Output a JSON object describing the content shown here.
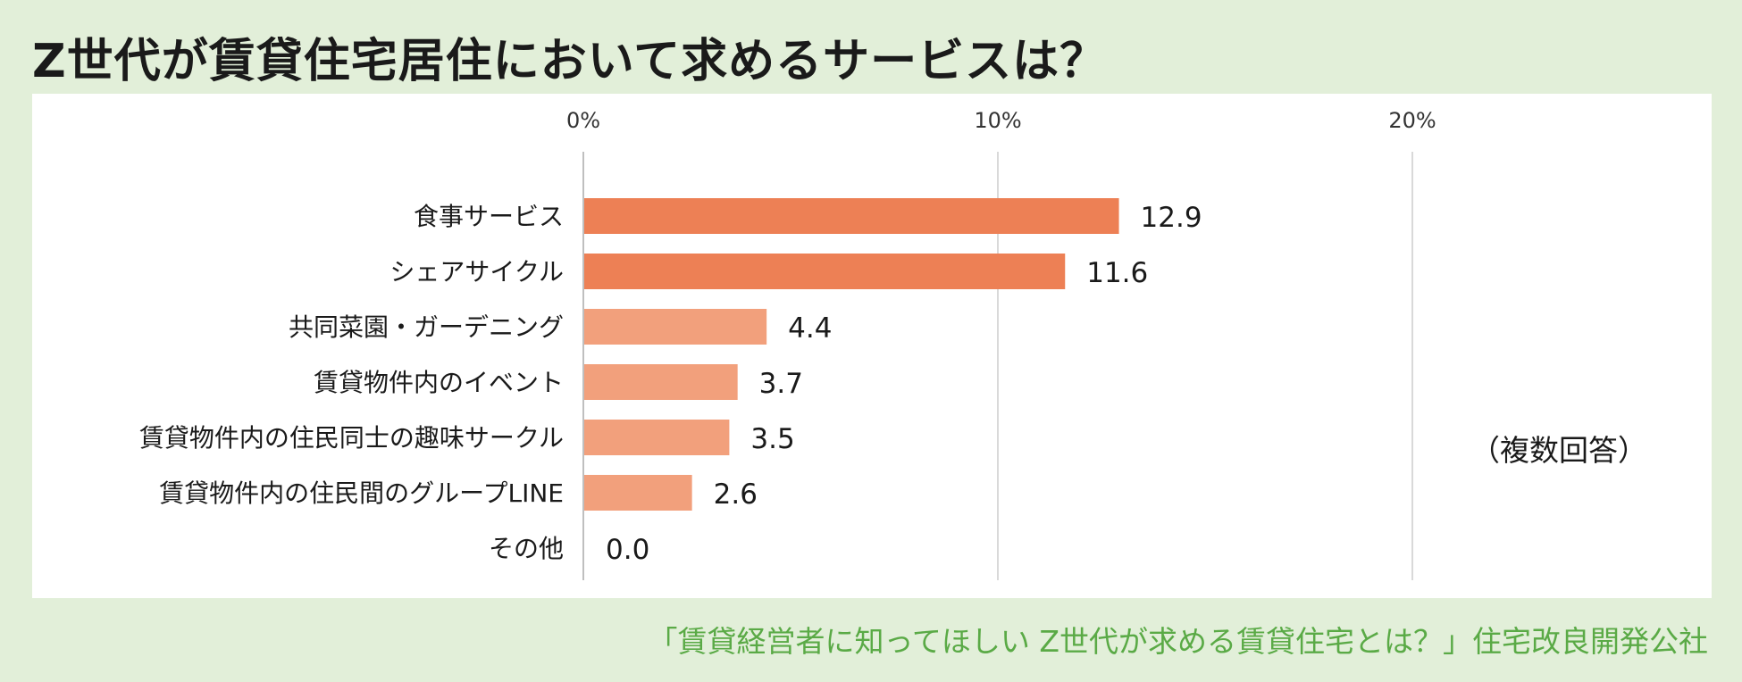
{
  "title": "Z世代が賃貸住宅居住において求めるサービスは？",
  "note": "（複数回答）",
  "source": "「賃貸経営者に知ってほしい Z世代が求める賃貸住宅とは？」住宅改良開発公社",
  "colors": {
    "background": "#e2efd9",
    "panel": "#ffffff",
    "bar_dark": "#ed8055",
    "bar_light": "#f2a07c",
    "grid": "#d9d9d9",
    "source_text": "#5aaa46"
  },
  "chart_data": {
    "type": "bar",
    "orientation": "horizontal",
    "categories": [
      "食事サービス",
      "シェアサイクル",
      "共同菜園・ガーデニング",
      "賃貸物件内のイベント",
      "賃貸物件内の住民同士の趣味サークル",
      "賃貸物件内の住民間のグループLINE",
      "その他"
    ],
    "values": [
      12.9,
      11.6,
      4.4,
      3.7,
      3.5,
      2.6,
      0.0
    ],
    "value_labels": [
      "12.9",
      "11.6",
      "4.4",
      "3.7",
      "3.5",
      "2.6",
      "0.0"
    ],
    "highlight": [
      true,
      true,
      false,
      false,
      false,
      false,
      false
    ],
    "xlim": [
      0,
      20
    ],
    "x_ticks": [
      0,
      10,
      20
    ],
    "x_tick_labels": [
      "0%",
      "10%",
      "20%"
    ],
    "x_axis_position": "top",
    "grid": true
  }
}
